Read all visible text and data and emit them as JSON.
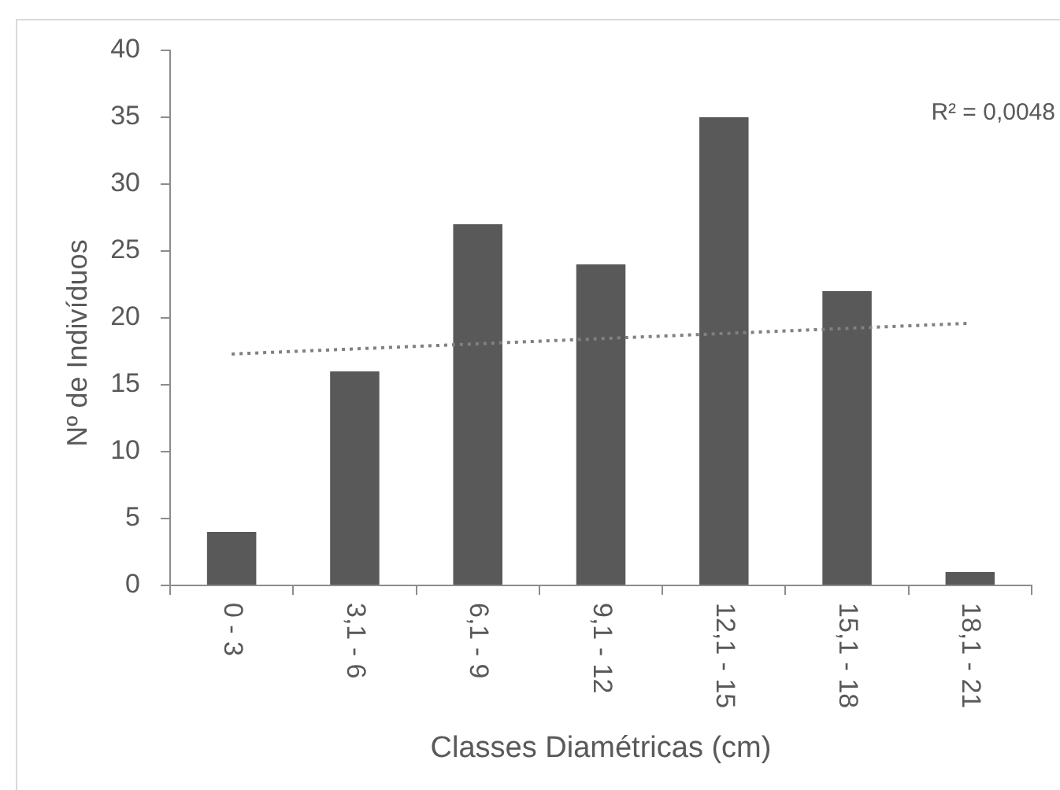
{
  "chart_data": {
    "type": "bar",
    "xlabel": "Classes Diamétricas (cm)",
    "ylabel": "Nº de Indivíduos",
    "categories": [
      "0 - 3",
      "3,1 - 6",
      "6,1 - 9",
      "9,1 - 12",
      "12,1 - 15",
      "15,1 - 18",
      "18,1 - 21"
    ],
    "series": [
      {
        "color": "#595959",
        "values": [
          4,
          16,
          27,
          24,
          35,
          22,
          1
        ]
      },
      {
        "type": "line",
        "color": "#808080",
        "x": [
          "0 - 3",
          "18,1 - 21"
        ],
        "values": [
          17.3,
          19.6
        ],
        "line_style": "dotted",
        "marker": "none"
      }
    ],
    "ylim": [
      0,
      40
    ],
    "yticks": [
      0,
      5,
      10,
      15,
      20,
      25,
      30,
      35,
      40
    ],
    "annotations": [
      "R² = 0,0048"
    ]
  }
}
